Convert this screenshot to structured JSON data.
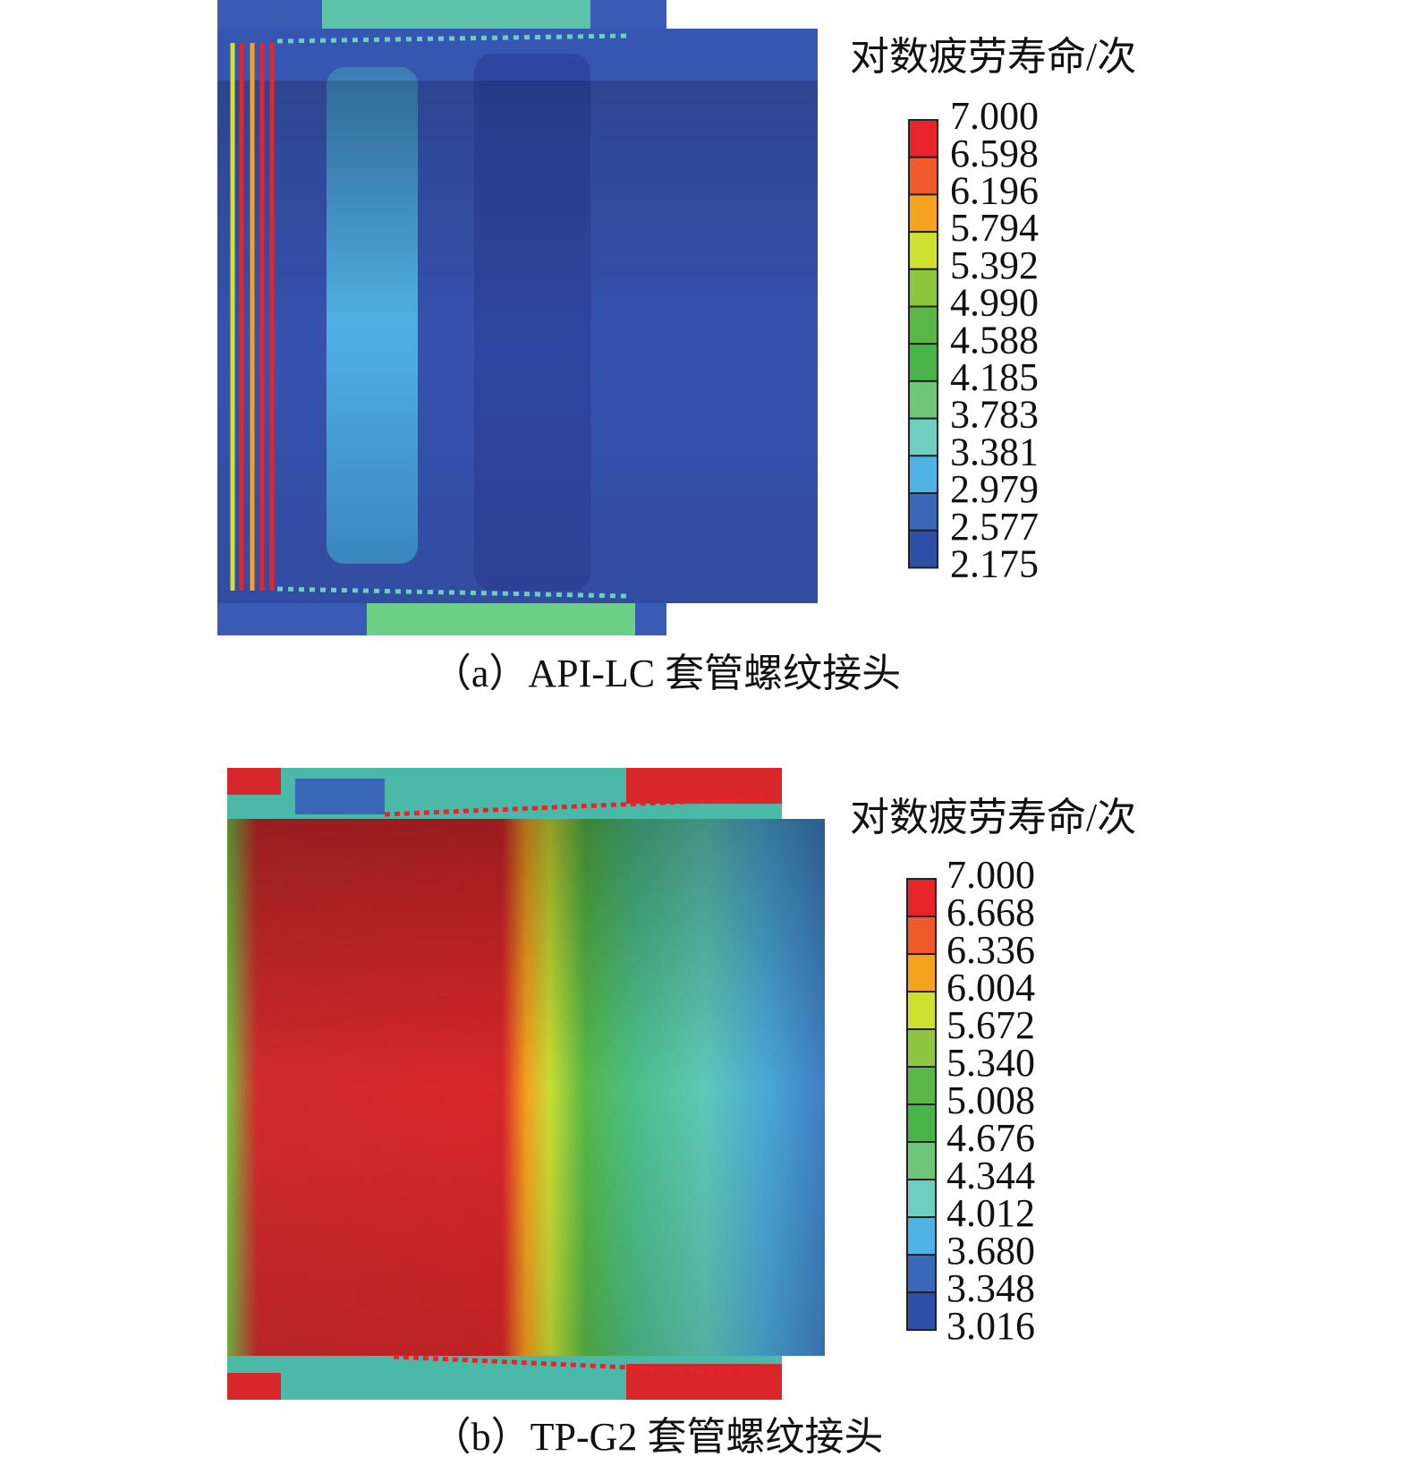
{
  "panels": [
    {
      "legend_title": "对数疲劳寿命/次",
      "legend_labels": [
        "7.000",
        "6.598",
        "6.196",
        "5.794",
        "5.392",
        "4.990",
        "4.588",
        "4.185",
        "3.783",
        "3.381",
        "2.979",
        "2.577",
        "2.175"
      ],
      "caption": "（a）API-LC 套管螺纹接头"
    },
    {
      "legend_title": "对数疲劳寿命/次",
      "legend_labels": [
        "7.000",
        "6.668",
        "6.336",
        "6.004",
        "5.672",
        "5.340",
        "5.008",
        "4.676",
        "4.344",
        "4.012",
        "3.680",
        "3.348",
        "3.016"
      ],
      "caption": "（b）TP-G2 套管螺纹接头"
    }
  ]
}
